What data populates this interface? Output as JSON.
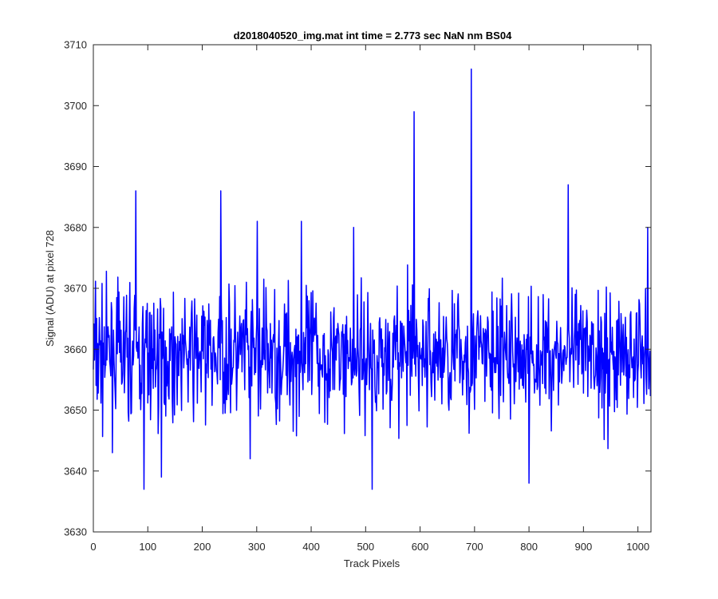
{
  "chart_data": {
    "type": "line",
    "title": "d2018040520_img.mat int time = 2.773 sec  NaN nm BS04",
    "xlabel": "Track Pixels",
    "ylabel": "Signal (ADU) at pixel 728",
    "xlim": [
      0,
      1024
    ],
    "ylim": [
      3630,
      3710
    ],
    "xticks": [
      0,
      100,
      200,
      300,
      400,
      500,
      600,
      700,
      800,
      900,
      1000
    ],
    "yticks": [
      3630,
      3640,
      3650,
      3660,
      3670,
      3680,
      3690,
      3700,
      3710
    ],
    "grid": false,
    "legend": "none",
    "series": [
      {
        "color": "#0000ff",
        "noise_baseline": 3659,
        "noise_range": [
          3643,
          3676
        ],
        "num_points": 1024,
        "spikes": [
          {
            "x": 78,
            "y": 3686
          },
          {
            "x": 93,
            "y": 3637
          },
          {
            "x": 125,
            "y": 3639
          },
          {
            "x": 234,
            "y": 3686
          },
          {
            "x": 288,
            "y": 3642
          },
          {
            "x": 301,
            "y": 3681
          },
          {
            "x": 382,
            "y": 3681
          },
          {
            "x": 478,
            "y": 3680
          },
          {
            "x": 512,
            "y": 3637
          },
          {
            "x": 589,
            "y": 3699
          },
          {
            "x": 694,
            "y": 3706
          },
          {
            "x": 800,
            "y": 3638
          },
          {
            "x": 872,
            "y": 3687
          },
          {
            "x": 1018,
            "y": 3680
          }
        ]
      }
    ]
  }
}
